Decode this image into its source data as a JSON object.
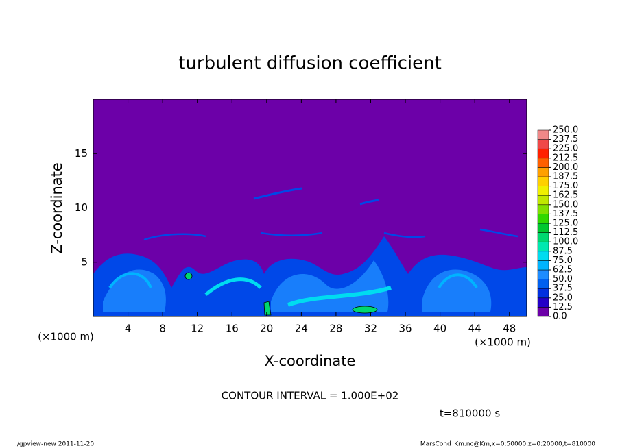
{
  "chart_data": {
    "type": "contour",
    "title": "turbulent diffusion coefficient",
    "xlabel": "X-coordinate",
    "ylabel": "Z-coordinate",
    "x_unit": "(×1000 m)",
    "xlim": [
      0,
      50
    ],
    "ylim": [
      0,
      20
    ],
    "xticks": [
      4,
      8,
      12,
      16,
      20,
      24,
      28,
      32,
      36,
      40,
      44,
      48
    ],
    "yticks": [
      5,
      10,
      15
    ],
    "background_color": "#6c00a8",
    "colorbar": {
      "ticks": [
        {
          "value": 0,
          "label": "0.0"
        },
        {
          "value": 12.5,
          "label": "12.5"
        },
        {
          "value": 25,
          "label": "25.0"
        },
        {
          "value": 37.5,
          "label": "37.5"
        },
        {
          "value": 50,
          "label": "50.0"
        },
        {
          "value": 62.5,
          "label": "62.5"
        },
        {
          "value": 75,
          "label": "75.0"
        },
        {
          "value": 87.5,
          "label": "87.5"
        },
        {
          "value": 100,
          "label": "100.0"
        },
        {
          "value": 112.5,
          "label": "112.5"
        },
        {
          "value": 125,
          "label": "125.0"
        },
        {
          "value": 137.5,
          "label": "137.5"
        },
        {
          "value": 150,
          "label": "150.0"
        },
        {
          "value": 162.5,
          "label": "162.5"
        },
        {
          "value": 175,
          "label": "175.0"
        },
        {
          "value": 187.5,
          "label": "187.5"
        },
        {
          "value": 200,
          "label": "200.0"
        },
        {
          "value": 212.5,
          "label": "212.5"
        },
        {
          "value": 225,
          "label": "225.0"
        },
        {
          "value": 237.5,
          "label": "237.5"
        },
        {
          "value": 250,
          "label": "250.0"
        }
      ],
      "colors": [
        "#6c00a8",
        "#2400c8",
        "#0030e0",
        "#0060f0",
        "#1e8cff",
        "#00b4ff",
        "#00dcf0",
        "#00e8b0",
        "#00d870",
        "#00c830",
        "#30d800",
        "#80e000",
        "#c0e800",
        "#f0f000",
        "#ffd000",
        "#ffa000",
        "#ff6000",
        "#ff2000",
        "#f04848",
        "#f08888"
      ]
    },
    "contour_interval": "CONTOUR INTERVAL = 1.000E+02",
    "time_label": "t=810000 s",
    "footer_left": "./gpview-new   2011-11-20",
    "footer_right": "MarsCond_Km.nc@Km,x=0:50000,z=0:20000,t=810000"
  }
}
